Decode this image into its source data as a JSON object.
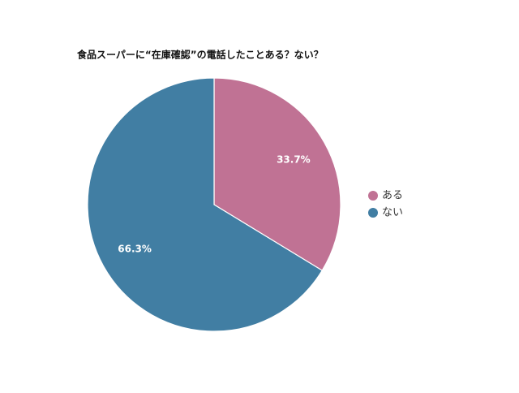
{
  "chart_data": {
    "type": "pie",
    "title": "食品スーパーに“在庫確認”の電話したことある？ない？",
    "categories": [
      "ある",
      "ない"
    ],
    "values": [
      33.7,
      66.3
    ],
    "value_labels": [
      "33.7%",
      "66.3%"
    ],
    "colors": [
      "#c07294",
      "#417ea3"
    ],
    "legend": "right"
  }
}
